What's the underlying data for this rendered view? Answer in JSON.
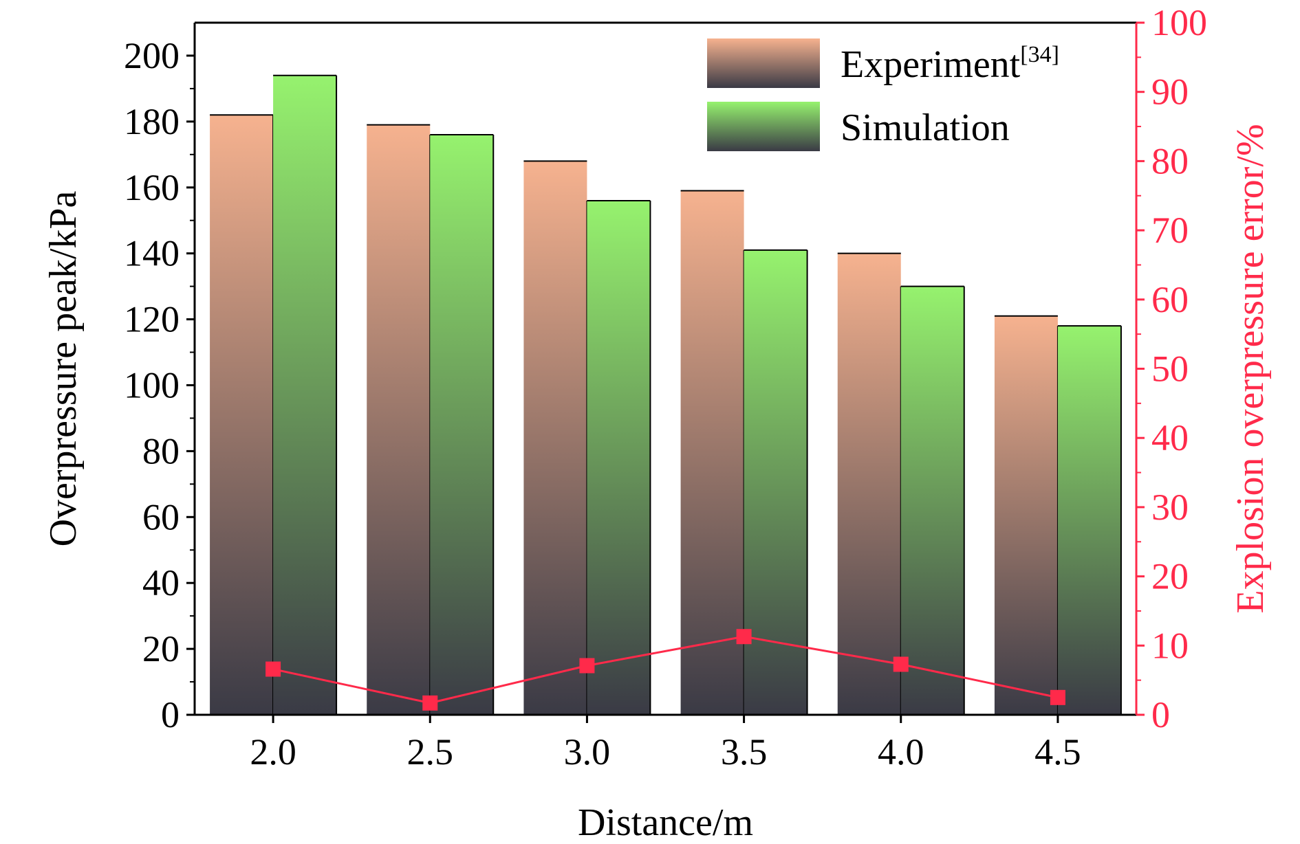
{
  "chart_data": {
    "type": "bar",
    "categories": [
      "2.0",
      "2.5",
      "3.0",
      "3.5",
      "4.0",
      "4.5"
    ],
    "series": [
      {
        "name": "Experiment",
        "name_superscript": "[34]",
        "values": [
          182,
          179,
          168,
          159,
          140,
          121
        ]
      },
      {
        "name": "Simulation",
        "values": [
          194,
          176,
          156,
          141,
          130,
          118
        ]
      }
    ],
    "secondary_series": {
      "type": "line",
      "axis": "right",
      "values": [
        6.6,
        1.7,
        7.1,
        11.3,
        7.3,
        2.5
      ]
    },
    "xlabel": "Distance/m",
    "ylabel": "Overpressure peak/kPa",
    "ylabel_right": "Explosion overpressure error/%",
    "ylim": [
      0,
      210
    ],
    "ylim_right": [
      0,
      100
    ],
    "yticks": [
      0,
      20,
      40,
      60,
      80,
      100,
      120,
      140,
      160,
      180,
      200
    ],
    "yticks_right": [
      0,
      10,
      20,
      30,
      40,
      50,
      60,
      70,
      80,
      90,
      100
    ],
    "legend_position": "top-right",
    "grid": false,
    "colors": {
      "experiment_top": "#f6b28f",
      "experiment_bottom": "#3a3a45",
      "simulation_top": "#96f26e",
      "simulation_bottom": "#3a3a45",
      "error_line": "#ff2a4a",
      "right_axis": "#ff2a4a",
      "axis": "#000000"
    }
  }
}
